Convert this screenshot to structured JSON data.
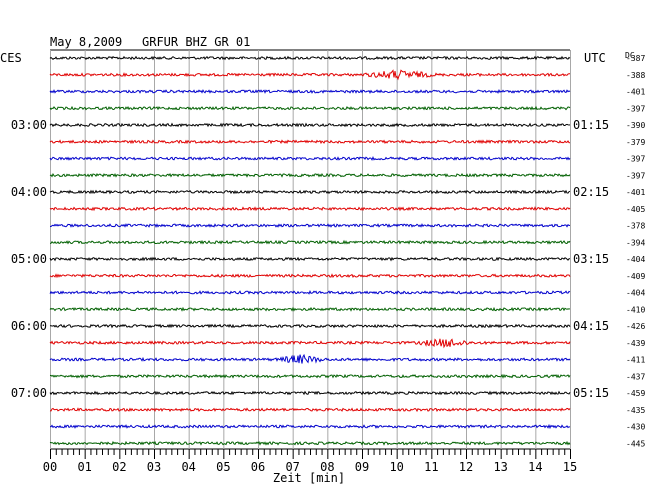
{
  "header": {
    "date": "May 8,2009",
    "station": "GRFUR BHZ GR 01",
    "left_tz": "CES",
    "right_tz": "UTC",
    "dc_label": "DC"
  },
  "chart_data": {
    "type": "line",
    "title": "May 8,2009   GRFUR BHZ GR 01",
    "xlabel": "Zeit [min]",
    "x_ticks": [
      "00",
      "01",
      "02",
      "03",
      "04",
      "05",
      "06",
      "07",
      "08",
      "09",
      "10",
      "11",
      "12",
      "13",
      "14",
      "15"
    ],
    "xlim": [
      0,
      15
    ],
    "grid": true,
    "trace_colors": [
      "#000000",
      "#e00000",
      "#0000cc",
      "#006000"
    ],
    "left_time_labels": [
      "03:00",
      "04:00",
      "05:00",
      "06:00",
      "07:00"
    ],
    "right_time_labels": [
      "01:15",
      "02:15",
      "03:15",
      "04:15",
      "05:15"
    ],
    "dc_offsets": [
      "-387",
      "-388",
      "-401",
      "-397",
      "-390",
      "-379",
      "-397",
      "-397",
      "-401",
      "-405",
      "-378",
      "-394",
      "-404",
      "-409",
      "-404",
      "-410",
      "-426",
      "-439",
      "-411",
      "-437",
      "-459",
      "-435",
      "-430",
      "-445"
    ],
    "events": [
      {
        "trace_index": 1,
        "start_min": 9.0,
        "peak_min": 10.0,
        "end_min": 11.2,
        "description": "larger amplitude"
      },
      {
        "trace_index": 17,
        "start_min": 10.5,
        "peak_min": 11.5,
        "end_min": 12.2
      },
      {
        "trace_index": 18,
        "start_min": 6.5,
        "peak_min": 7.2,
        "end_min": 8.0
      }
    ]
  }
}
